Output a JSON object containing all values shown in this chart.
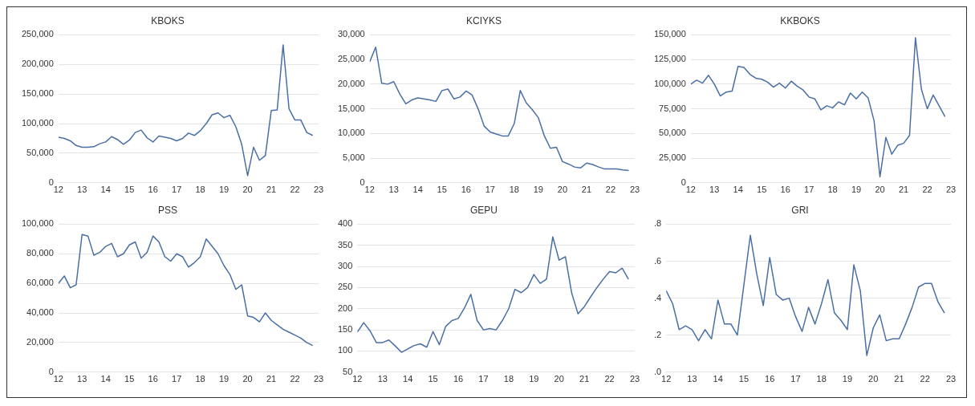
{
  "chart_data": [
    {
      "type": "line",
      "title": "KBOKS",
      "x": [
        12,
        12.25,
        12.5,
        12.75,
        13,
        13.25,
        13.5,
        13.75,
        14,
        14.25,
        14.5,
        14.75,
        15,
        15.25,
        15.5,
        15.75,
        16,
        16.25,
        16.5,
        16.75,
        17,
        17.25,
        17.5,
        17.75,
        18,
        18.25,
        18.5,
        18.75,
        19,
        19.25,
        19.5,
        19.75,
        20,
        20.25,
        20.5,
        20.75,
        21,
        21.25,
        21.5,
        21.75,
        22,
        22.25,
        22.5,
        22.75
      ],
      "series": [
        {
          "color": "#4a6fa5",
          "values": [
            77000,
            75000,
            71000,
            63000,
            60000,
            60000,
            61000,
            66000,
            69000,
            78000,
            73000,
            65000,
            72000,
            85000,
            89000,
            76000,
            69000,
            79000,
            77000,
            75000,
            71000,
            75000,
            84000,
            80000,
            88000,
            100000,
            115000,
            118000,
            110000,
            114000,
            95000,
            65000,
            12000,
            60000,
            38000,
            46000,
            122000,
            123000,
            233000,
            125000,
            106000,
            106000,
            85000,
            80000
          ]
        }
      ],
      "xlim": [
        12,
        23
      ],
      "xticks": [
        12,
        13,
        14,
        15,
        16,
        17,
        18,
        19,
        20,
        21,
        22,
        23
      ],
      "ylim": [
        0,
        250000
      ],
      "yticks": [
        0,
        {
          "value": 50000,
          "label": "50,000"
        },
        {
          "value": 100000,
          "label": "100,000"
        },
        {
          "value": 150000,
          "label": "150,000"
        },
        {
          "value": 200000,
          "label": "200,000"
        },
        {
          "value": 250000,
          "label": "250,000"
        }
      ],
      "grid": "y",
      "legend": false,
      "marker": "none",
      "line_style": "solid"
    },
    {
      "type": "line",
      "title": "KCIYKS",
      "x": [
        12,
        12.25,
        12.5,
        12.75,
        13,
        13.25,
        13.5,
        13.75,
        14,
        14.25,
        14.5,
        14.75,
        15,
        15.25,
        15.5,
        15.75,
        16,
        16.25,
        16.5,
        16.75,
        17,
        17.25,
        17.5,
        17.75,
        18,
        18.25,
        18.5,
        18.75,
        19,
        19.25,
        19.5,
        19.75,
        20,
        20.25,
        20.5,
        20.75,
        21,
        21.25,
        21.5,
        21.75,
        22,
        22.25,
        22.5,
        22.75
      ],
      "series": [
        {
          "color": "#4a6fa5",
          "values": [
            24500,
            27500,
            20200,
            20000,
            20500,
            18000,
            16000,
            16800,
            17200,
            17000,
            16800,
            16500,
            18700,
            19000,
            17000,
            17400,
            18600,
            17800,
            15000,
            11500,
            10300,
            9900,
            9500,
            9500,
            12000,
            18700,
            16200,
            14800,
            13200,
            9500,
            7000,
            7200,
            4300,
            3800,
            3200,
            3000,
            4000,
            3700,
            3200,
            2800,
            2800,
            2800,
            2600,
            2500
          ]
        }
      ],
      "xlim": [
        12,
        23
      ],
      "xticks": [
        12,
        13,
        14,
        15,
        16,
        17,
        18,
        19,
        20,
        21,
        22,
        23
      ],
      "ylim": [
        0,
        30000
      ],
      "yticks": [
        0,
        {
          "value": 5000,
          "label": "5,000"
        },
        {
          "value": 10000,
          "label": "10,000"
        },
        {
          "value": 15000,
          "label": "15,000"
        },
        {
          "value": 20000,
          "label": "20,000"
        },
        {
          "value": 25000,
          "label": "25,000"
        },
        {
          "value": 30000,
          "label": "30,000"
        }
      ],
      "grid": "y",
      "legend": false,
      "marker": "none",
      "line_style": "solid"
    },
    {
      "type": "line",
      "title": "KKBOKS",
      "x": [
        12,
        12.25,
        12.5,
        12.75,
        13,
        13.25,
        13.5,
        13.75,
        14,
        14.25,
        14.5,
        14.75,
        15,
        15.25,
        15.5,
        15.75,
        16,
        16.25,
        16.5,
        16.75,
        17,
        17.25,
        17.5,
        17.75,
        18,
        18.25,
        18.5,
        18.75,
        19,
        19.25,
        19.5,
        19.75,
        20,
        20.25,
        20.5,
        20.75,
        21,
        21.25,
        21.5,
        21.75,
        22,
        22.25,
        22.5,
        22.75
      ],
      "series": [
        {
          "color": "#4a6fa5",
          "values": [
            100000,
            104000,
            101000,
            109000,
            100000,
            88000,
            92000,
            93000,
            118000,
            117000,
            110000,
            106000,
            105000,
            102000,
            97000,
            101000,
            96000,
            103000,
            98000,
            94000,
            87000,
            85000,
            74000,
            78000,
            76000,
            82000,
            79000,
            91000,
            85000,
            92000,
            86000,
            63000,
            6000,
            46000,
            29000,
            38000,
            40000,
            48000,
            147000,
            95000,
            75000,
            89000,
            78000,
            67000
          ]
        }
      ],
      "xlim": [
        12,
        23
      ],
      "xticks": [
        12,
        13,
        14,
        15,
        16,
        17,
        18,
        19,
        20,
        21,
        22,
        23
      ],
      "ylim": [
        0,
        150000
      ],
      "yticks": [
        0,
        {
          "value": 25000,
          "label": "25,000"
        },
        {
          "value": 50000,
          "label": "50,000"
        },
        {
          "value": 75000,
          "label": "75,000"
        },
        {
          "value": 100000,
          "label": "100,000"
        },
        {
          "value": 125000,
          "label": "125,000"
        },
        {
          "value": 150000,
          "label": "150,000"
        }
      ],
      "grid": "y",
      "legend": false,
      "marker": "none",
      "line_style": "solid"
    },
    {
      "type": "line",
      "title": "PSS",
      "x": [
        12,
        12.25,
        12.5,
        12.75,
        13,
        13.25,
        13.5,
        13.75,
        14,
        14.25,
        14.5,
        14.75,
        15,
        15.25,
        15.5,
        15.75,
        16,
        16.25,
        16.5,
        16.75,
        17,
        17.25,
        17.5,
        17.75,
        18,
        18.25,
        18.5,
        18.75,
        19,
        19.25,
        19.5,
        19.75,
        20,
        20.25,
        20.5,
        20.75,
        21,
        21.25,
        21.5,
        21.75,
        22,
        22.25,
        22.5,
        22.75
      ],
      "series": [
        {
          "color": "#4a6fa5",
          "values": [
            60000,
            65000,
            57000,
            59000,
            93000,
            92000,
            79000,
            81000,
            85000,
            87000,
            78000,
            80000,
            86000,
            88000,
            77000,
            81000,
            92000,
            88000,
            78000,
            75000,
            80000,
            78000,
            71000,
            74000,
            78000,
            90000,
            85000,
            80000,
            72000,
            66000,
            56000,
            59000,
            38000,
            37000,
            34000,
            40000,
            35000,
            32000,
            29000,
            27000,
            25000,
            23000,
            20000,
            18000
          ]
        }
      ],
      "xlim": [
        12,
        23
      ],
      "xticks": [
        12,
        13,
        14,
        15,
        16,
        17,
        18,
        19,
        20,
        21,
        22,
        23
      ],
      "ylim": [
        0,
        100000
      ],
      "yticks": [
        0,
        {
          "value": 20000,
          "label": "20,000"
        },
        {
          "value": 40000,
          "label": "40,000"
        },
        {
          "value": 60000,
          "label": "60,000"
        },
        {
          "value": 80000,
          "label": "80,000"
        },
        {
          "value": 100000,
          "label": "100,000"
        }
      ],
      "grid": "y",
      "legend": false,
      "marker": "none",
      "line_style": "solid"
    },
    {
      "type": "line",
      "title": "GEPU",
      "x": [
        12,
        12.25,
        12.5,
        12.75,
        13,
        13.25,
        13.5,
        13.75,
        14,
        14.25,
        14.5,
        14.75,
        15,
        15.25,
        15.5,
        15.75,
        16,
        16.25,
        16.5,
        16.75,
        17,
        17.25,
        17.5,
        17.75,
        18,
        18.25,
        18.5,
        18.75,
        19,
        19.25,
        19.5,
        19.75,
        20,
        20.25,
        20.5,
        20.75,
        21,
        21.25,
        21.5,
        21.75,
        22,
        22.25,
        22.5,
        22.75
      ],
      "series": [
        {
          "color": "#4a6fa5",
          "values": [
            145,
            167,
            148,
            120,
            120,
            126,
            112,
            97,
            105,
            113,
            117,
            109,
            146,
            115,
            158,
            172,
            177,
            202,
            234,
            172,
            150,
            153,
            150,
            172,
            200,
            246,
            238,
            250,
            281,
            260,
            270,
            370,
            315,
            323,
            237,
            188,
            205,
            228,
            250,
            270,
            288,
            285,
            296,
            270
          ]
        }
      ],
      "xlim": [
        12,
        23
      ],
      "xticks": [
        12,
        13,
        14,
        15,
        16,
        17,
        18,
        19,
        20,
        21,
        22,
        23
      ],
      "ylim": [
        50,
        400
      ],
      "yticks": [
        50,
        100,
        150,
        200,
        250,
        300,
        350,
        400
      ],
      "grid": "y",
      "legend": false,
      "marker": "none",
      "line_style": "solid"
    },
    {
      "type": "line",
      "title": "GRI",
      "x": [
        12,
        12.25,
        12.5,
        12.75,
        13,
        13.25,
        13.5,
        13.75,
        14,
        14.25,
        14.5,
        14.75,
        15,
        15.25,
        15.5,
        15.75,
        16,
        16.25,
        16.5,
        16.75,
        17,
        17.25,
        17.5,
        17.75,
        18,
        18.25,
        18.5,
        18.75,
        19,
        19.25,
        19.5,
        19.75,
        20,
        20.25,
        20.5,
        20.75,
        21,
        21.25,
        21.5,
        21.75,
        22,
        22.25,
        22.5,
        22.75
      ],
      "series": [
        {
          "color": "#4a6fa5",
          "values": [
            0.44,
            0.37,
            0.23,
            0.25,
            0.23,
            0.17,
            0.23,
            0.18,
            0.39,
            0.26,
            0.26,
            0.2,
            0.47,
            0.74,
            0.53,
            0.36,
            0.62,
            0.42,
            0.39,
            0.4,
            0.3,
            0.22,
            0.35,
            0.26,
            0.37,
            0.5,
            0.32,
            0.28,
            0.23,
            0.58,
            0.44,
            0.09,
            0.24,
            0.31,
            0.17,
            0.18,
            0.18,
            0.26,
            0.35,
            0.46,
            0.48,
            0.48,
            0.38,
            0.32
          ]
        }
      ],
      "xlim": [
        12,
        23
      ],
      "xticks": [
        12,
        13,
        14,
        15,
        16,
        17,
        18,
        19,
        20,
        21,
        22,
        23
      ],
      "ylim": [
        0,
        0.8
      ],
      "yticks": [
        {
          "value": 0,
          "label": ".0"
        },
        {
          "value": 0.2,
          "label": ".2"
        },
        {
          "value": 0.4,
          "label": ".4"
        },
        {
          "value": 0.6,
          "label": ".6"
        },
        {
          "value": 0.8,
          "label": ".8"
        }
      ],
      "grid": "y",
      "legend": false,
      "marker": "none",
      "line_style": "solid"
    }
  ]
}
